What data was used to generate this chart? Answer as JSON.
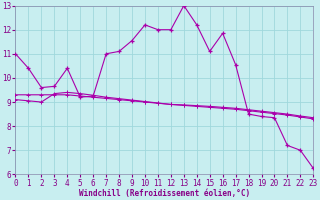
{
  "xlabel": "Windchill (Refroidissement éolien,°C)",
  "bg_color": "#c8eef0",
  "grid_color": "#a0d8dc",
  "line_color": "#aa00aa",
  "x_values": [
    0,
    1,
    2,
    3,
    4,
    5,
    6,
    7,
    8,
    9,
    10,
    11,
    12,
    13,
    14,
    15,
    16,
    17,
    18,
    19,
    20,
    21,
    22,
    23
  ],
  "line1_y": [
    11.0,
    10.4,
    9.6,
    9.65,
    10.4,
    9.2,
    9.25,
    11.0,
    11.1,
    11.55,
    12.2,
    12.0,
    12.0,
    13.0,
    12.2,
    11.1,
    11.85,
    10.55,
    8.5,
    8.4,
    8.35,
    7.2,
    7.0,
    6.25
  ],
  "line2_y": [
    9.3,
    9.3,
    9.3,
    9.3,
    9.3,
    9.25,
    9.2,
    9.15,
    9.1,
    9.05,
    9.0,
    8.95,
    8.9,
    8.88,
    8.85,
    8.82,
    8.78,
    8.74,
    8.68,
    8.62,
    8.56,
    8.5,
    8.42,
    8.35
  ],
  "line3_y": [
    9.1,
    9.05,
    9.0,
    9.35,
    9.4,
    9.35,
    9.28,
    9.2,
    9.14,
    9.08,
    9.02,
    8.96,
    8.9,
    8.86,
    8.82,
    8.78,
    8.74,
    8.7,
    8.64,
    8.58,
    8.52,
    8.46,
    8.38,
    8.3
  ],
  "ylim": [
    6,
    13
  ],
  "xlim": [
    0,
    23
  ],
  "yticks": [
    6,
    7,
    8,
    9,
    10,
    11,
    12,
    13
  ],
  "xticks": [
    0,
    1,
    2,
    3,
    4,
    5,
    6,
    7,
    8,
    9,
    10,
    11,
    12,
    13,
    14,
    15,
    16,
    17,
    18,
    19,
    20,
    21,
    22,
    23
  ],
  "tick_label_color": "#880088",
  "xlabel_color": "#880088",
  "spine_color": "#8888aa"
}
